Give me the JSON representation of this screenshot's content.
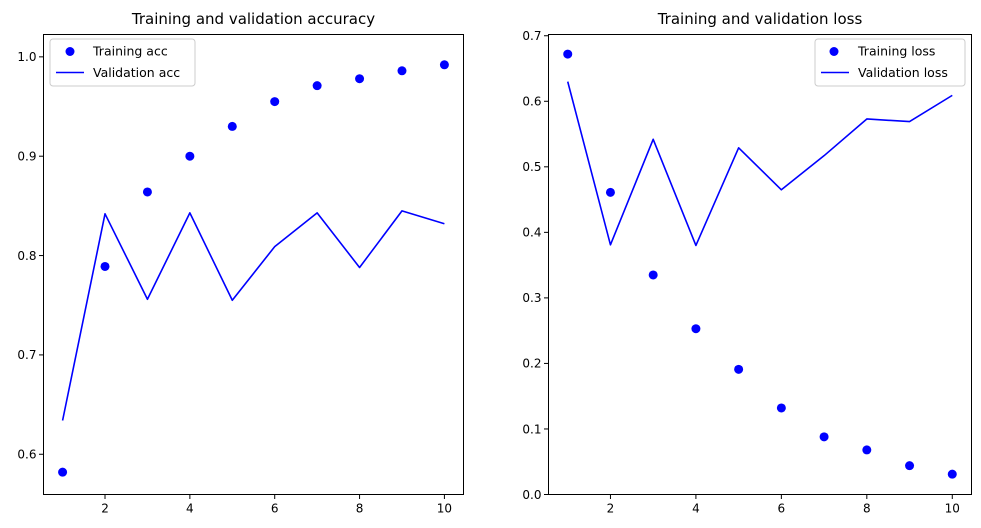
{
  "chart_data": [
    {
      "type": "line",
      "title": "Training and validation accuracy",
      "xlabel": "",
      "ylabel": "",
      "xlim": [
        0.55,
        10.45
      ],
      "ylim": [
        0.5595,
        1.0225
      ],
      "xticks": [
        2,
        4,
        6,
        8,
        10
      ],
      "yticks": [
        0.6,
        0.7,
        0.8,
        0.9,
        1.0
      ],
      "ytick_labels": [
        "0.6",
        "0.7",
        "0.8",
        "0.9",
        "1.0"
      ],
      "grid": false,
      "legend_position": "upper-left",
      "x": [
        1,
        2,
        3,
        4,
        5,
        6,
        7,
        8,
        9,
        10
      ],
      "series": [
        {
          "name": "Training acc",
          "style": "points",
          "color": "#0000ff",
          "values": [
            0.582,
            0.789,
            0.864,
            0.9,
            0.93,
            0.955,
            0.971,
            0.978,
            0.986,
            0.992
          ]
        },
        {
          "name": "Validation acc",
          "style": "line",
          "color": "#0000ff",
          "values": [
            0.634,
            0.842,
            0.756,
            0.843,
            0.755,
            0.809,
            0.843,
            0.788,
            0.845,
            0.832
          ]
        }
      ]
    },
    {
      "type": "line",
      "title": "Training and validation loss",
      "xlabel": "",
      "ylabel": "",
      "xlim": [
        0.55,
        10.45
      ],
      "ylim": [
        0.0,
        0.7019
      ],
      "xticks": [
        2,
        4,
        6,
        8,
        10
      ],
      "yticks": [
        0.0,
        0.1,
        0.2,
        0.3,
        0.4,
        0.5,
        0.6,
        0.7
      ],
      "ytick_labels": [
        "0.0",
        "0.1",
        "0.2",
        "0.3",
        "0.4",
        "0.5",
        "0.6",
        "0.7"
      ],
      "grid": false,
      "legend_position": "upper-right",
      "x": [
        1,
        2,
        3,
        4,
        5,
        6,
        7,
        8,
        9,
        10
      ],
      "series": [
        {
          "name": "Training loss",
          "style": "points",
          "color": "#0000ff",
          "values": [
            0.672,
            0.461,
            0.335,
            0.253,
            0.191,
            0.132,
            0.088,
            0.068,
            0.044,
            0.031
          ]
        },
        {
          "name": "Validation loss",
          "style": "line",
          "color": "#0000ff",
          "values": [
            0.63,
            0.381,
            0.542,
            0.38,
            0.529,
            0.465,
            0.517,
            0.573,
            0.569,
            0.609
          ]
        }
      ]
    }
  ]
}
